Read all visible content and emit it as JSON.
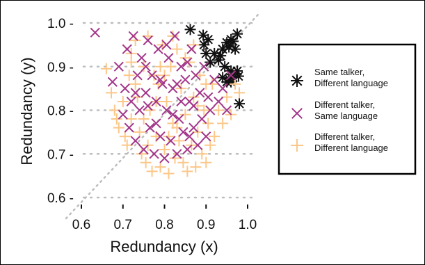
{
  "chart_data": {
    "type": "scatter",
    "xlabel": "Redundancy (x)",
    "ylabel": "Redundancy (y)",
    "xlim": [
      0.6,
      1.0
    ],
    "ylim": [
      0.6,
      1.0
    ],
    "xticks": [
      "0.6",
      "0.7",
      "0.8",
      "0.9",
      "1.0"
    ],
    "yticks": [
      "0.6 -",
      "0.7 -",
      "0.8 -",
      "0.9 -",
      "1.0 -"
    ],
    "grid": "dotted horizontal lines at y ticks; dotted diagonal y=x",
    "legend": {
      "placement": "right",
      "entries": [
        {
          "line1": "Same talker,",
          "line2": "Different language",
          "marker": "asterisk",
          "color": "#111111"
        },
        {
          "line1": "Different talker,",
          "line2": "Same language",
          "marker": "x",
          "color": "#a3378a"
        },
        {
          "line1": "Different talker,",
          "line2": "Different language",
          "marker": "plus",
          "color": "#fcc789"
        }
      ]
    },
    "series": [
      {
        "legend_index": 0,
        "marker": "asterisk",
        "color": "#111111",
        "points": [
          [
            0.862,
            0.985
          ],
          [
            0.893,
            0.972
          ],
          [
            0.905,
            0.962
          ],
          [
            0.895,
            0.95
          ],
          [
            0.92,
            0.93
          ],
          [
            0.94,
            0.94
          ],
          [
            0.95,
            0.955
          ],
          [
            0.96,
            0.962
          ],
          [
            0.965,
            0.958
          ],
          [
            0.975,
            0.975
          ],
          [
            0.955,
            0.945
          ],
          [
            0.97,
            0.94
          ],
          [
            0.93,
            0.915
          ],
          [
            0.91,
            0.91
          ],
          [
            0.945,
            0.9
          ],
          [
            0.96,
            0.89
          ],
          [
            0.975,
            0.89
          ],
          [
            0.978,
            0.878
          ],
          [
            0.94,
            0.875
          ],
          [
            0.955,
            0.872
          ],
          [
            0.95,
            0.865
          ],
          [
            0.96,
            0.865
          ],
          [
            0.965,
            0.875
          ],
          [
            0.98,
            0.815
          ],
          [
            0.935,
            0.925
          ],
          [
            0.9,
            0.93
          ]
        ]
      },
      {
        "legend_index": 2,
        "marker": "plus",
        "color": "#fcc789",
        "points": [
          [
            0.66,
            0.895
          ],
          [
            0.672,
            0.84
          ],
          [
            0.68,
            0.8
          ],
          [
            0.685,
            0.78
          ],
          [
            0.69,
            0.76
          ],
          [
            0.7,
            0.82
          ],
          [
            0.705,
            0.74
          ],
          [
            0.71,
            0.72
          ],
          [
            0.715,
            0.88
          ],
          [
            0.72,
            0.93
          ],
          [
            0.72,
            0.78
          ],
          [
            0.73,
            0.96
          ],
          [
            0.735,
            0.83
          ],
          [
            0.74,
            0.75
          ],
          [
            0.745,
            0.7
          ],
          [
            0.75,
            0.9
          ],
          [
            0.755,
            0.68
          ],
          [
            0.76,
            0.97
          ],
          [
            0.765,
            0.8
          ],
          [
            0.77,
            0.66
          ],
          [
            0.775,
            0.88
          ],
          [
            0.78,
            0.74
          ],
          [
            0.785,
            0.86
          ],
          [
            0.79,
            0.67
          ],
          [
            0.795,
            0.95
          ],
          [
            0.8,
            0.71
          ],
          [
            0.805,
            0.82
          ],
          [
            0.81,
            0.655
          ],
          [
            0.815,
            0.9
          ],
          [
            0.82,
            0.77
          ],
          [
            0.825,
            0.69
          ],
          [
            0.83,
            0.94
          ],
          [
            0.835,
            0.73
          ],
          [
            0.84,
            0.85
          ],
          [
            0.845,
            0.68
          ],
          [
            0.85,
            0.79
          ],
          [
            0.855,
            0.66
          ],
          [
            0.86,
            0.91
          ],
          [
            0.865,
            0.72
          ],
          [
            0.87,
            0.83
          ],
          [
            0.875,
            0.67
          ],
          [
            0.88,
            0.75
          ],
          [
            0.885,
            0.88
          ],
          [
            0.89,
            0.7
          ],
          [
            0.895,
            0.8
          ],
          [
            0.9,
            0.68
          ],
          [
            0.905,
            0.77
          ],
          [
            0.91,
            0.72
          ],
          [
            0.915,
            0.86
          ],
          [
            0.92,
            0.74
          ],
          [
            0.93,
            0.8
          ],
          [
            0.94,
            0.77
          ],
          [
            0.95,
            0.83
          ],
          [
            0.96,
            0.79
          ],
          [
            0.97,
            0.86
          ],
          [
            0.98,
            0.84
          ],
          [
            0.75,
            0.78
          ],
          [
            0.8,
            0.88
          ],
          [
            0.85,
            0.92
          ],
          [
            0.78,
            0.82
          ],
          [
            0.83,
            0.76
          ],
          [
            0.73,
            0.86
          ],
          [
            0.88,
            0.81
          ],
          [
            0.76,
            0.72
          ],
          [
            0.82,
            0.97
          ],
          [
            0.87,
            0.95
          ],
          [
            0.72,
            0.91
          ],
          [
            0.9,
            0.86
          ],
          [
            0.81,
            0.74
          ],
          [
            0.79,
            0.9
          ]
        ]
      },
      {
        "legend_index": 1,
        "marker": "x",
        "color": "#a3378a",
        "points": [
          [
            0.633,
            0.978
          ],
          [
            0.675,
            0.865
          ],
          [
            0.69,
            0.9
          ],
          [
            0.7,
            0.79
          ],
          [
            0.705,
            0.85
          ],
          [
            0.71,
            0.94
          ],
          [
            0.715,
            0.76
          ],
          [
            0.72,
            0.82
          ],
          [
            0.725,
            0.97
          ],
          [
            0.73,
            0.73
          ],
          [
            0.735,
            0.88
          ],
          [
            0.74,
            0.8
          ],
          [
            0.745,
            0.92
          ],
          [
            0.75,
            0.71
          ],
          [
            0.755,
            0.84
          ],
          [
            0.76,
            0.96
          ],
          [
            0.765,
            0.76
          ],
          [
            0.77,
            0.88
          ],
          [
            0.775,
            0.7
          ],
          [
            0.78,
            0.82
          ],
          [
            0.785,
            0.94
          ],
          [
            0.79,
            0.74
          ],
          [
            0.795,
            0.86
          ],
          [
            0.8,
            0.69
          ],
          [
            0.805,
            0.8
          ],
          [
            0.81,
            0.92
          ],
          [
            0.815,
            0.73
          ],
          [
            0.82,
            0.85
          ],
          [
            0.825,
            0.97
          ],
          [
            0.83,
            0.7
          ],
          [
            0.835,
            0.78
          ],
          [
            0.84,
            0.9
          ],
          [
            0.845,
            0.75
          ],
          [
            0.85,
            0.87
          ],
          [
            0.855,
            0.71
          ],
          [
            0.86,
            0.82
          ],
          [
            0.865,
            0.94
          ],
          [
            0.87,
            0.76
          ],
          [
            0.875,
            0.88
          ],
          [
            0.88,
            0.72
          ],
          [
            0.885,
            0.84
          ],
          [
            0.89,
            0.78
          ],
          [
            0.895,
            0.9
          ],
          [
            0.9,
            0.74
          ],
          [
            0.905,
            0.83
          ],
          [
            0.91,
            0.8
          ],
          [
            0.92,
            0.87
          ],
          [
            0.93,
            0.82
          ],
          [
            0.94,
            0.85
          ],
          [
            0.95,
            0.8
          ],
          [
            0.96,
            0.88
          ],
          [
            0.755,
            0.9
          ],
          [
            0.805,
            0.95
          ],
          [
            0.855,
            0.91
          ],
          [
            0.78,
            0.77
          ],
          [
            0.83,
            0.86
          ],
          [
            0.73,
            0.84
          ],
          [
            0.87,
            0.81
          ],
          [
            0.76,
            0.81
          ],
          [
            0.82,
            0.79
          ],
          [
            0.86,
            0.74
          ],
          [
            0.79,
            0.87
          ],
          [
            0.84,
            0.82
          ]
        ]
      }
    ]
  }
}
